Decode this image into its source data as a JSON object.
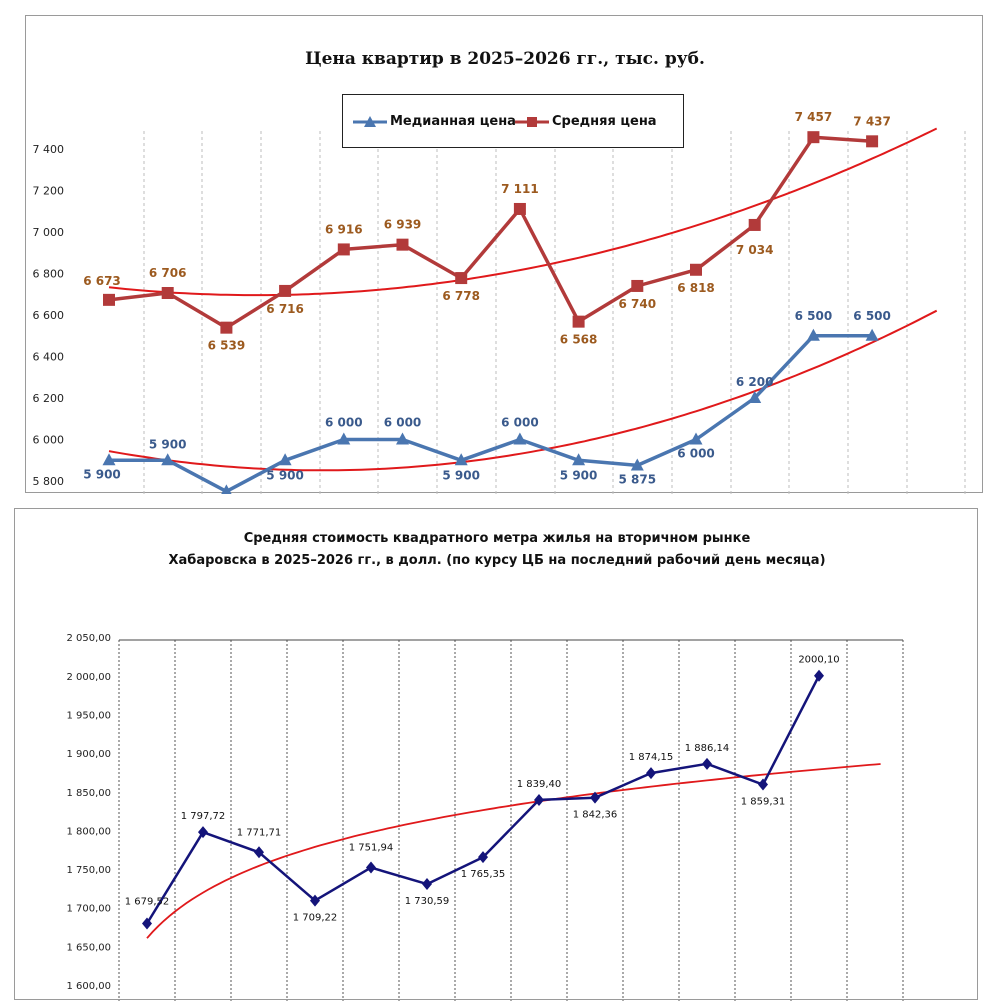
{
  "chart_data": [
    {
      "type": "line",
      "title": "Цена квартир в 2025–2026 гг., тыс. руб.",
      "ylim": [
        5800,
        7400
      ],
      "yticks": [
        "5 800",
        "6 000",
        "6 200",
        "6 400",
        "6 600",
        "6 800",
        "7 000",
        "7 200",
        "7 400"
      ],
      "ytick_values": [
        5800,
        6000,
        6200,
        6400,
        6600,
        6800,
        7000,
        7200,
        7400
      ],
      "grid": "vertical dashed",
      "legend": "top-center",
      "series": [
        {
          "name": "Медианная цена",
          "marker": "triangle",
          "color": "#4a76b0",
          "values": [
            5900,
            5900,
            5750,
            5900,
            6000,
            6000,
            5900,
            6000,
            5900,
            5875,
            6000,
            6200,
            6500,
            6500
          ],
          "labels": [
            "5 900",
            "5 900",
            "",
            "5 900",
            "6 000",
            "6 000",
            "5 900",
            "6 000",
            "5 900",
            "5 875",
            "6 000",
            "6 200",
            "6 500",
            "6 500"
          ]
        },
        {
          "name": "Средняя цена",
          "marker": "square",
          "color": "#b23a3a",
          "values": [
            6673,
            6706,
            6539,
            6716,
            6916,
            6939,
            6778,
            7111,
            6568,
            6740,
            6818,
            7034,
            7457,
            7437
          ],
          "labels": [
            "6 673",
            "6 706",
            "6 539",
            "6 716",
            "6 916",
            "6 939",
            "6 778",
            "7 111",
            "6 568",
            "6 740",
            "6 818",
            "7 034",
            "7 457",
            "7 437"
          ]
        }
      ],
      "trendlines": [
        {
          "series": "Средняя цена",
          "kind": "polynomial",
          "color": "#e0191b"
        },
        {
          "series": "Медианная цена",
          "kind": "polynomial",
          "color": "#e0191b"
        }
      ]
    },
    {
      "type": "line",
      "title_line1": "Средняя стоимость квадратного метра жилья на вторичном рынке",
      "title_line2": "Хабаровска в 2025–2026 гг., в долл.  (по курсу ЦБ на последний рабочий день месяца)",
      "ylim": [
        1600,
        2050
      ],
      "yticks": [
        "1 600,00",
        "1 650,00",
        "1 700,00",
        "1 750,00",
        "1 800,00",
        "1 850,00",
        "1 900,00",
        "1 950,00",
        "2 000,00",
        "2 050,00"
      ],
      "ytick_values": [
        1600,
        1650,
        1700,
        1750,
        1800,
        1850,
        1900,
        1950,
        2000,
        2050
      ],
      "grid": "vertical dotted",
      "series": [
        {
          "marker": "diamond",
          "color": "#14147a",
          "values": [
            1679.52,
            1797.72,
            1771.71,
            1709.22,
            1751.94,
            1730.59,
            1765.35,
            1839.4,
            1842.36,
            1874.15,
            1886.14,
            1859.31,
            2000.1
          ],
          "labels": [
            "1 679,52",
            "1 797,72",
            "1 771,71",
            "1 709,22",
            "1 751,94",
            "1 730,59",
            "1 765,35",
            "1 839,40",
            "1 842,36",
            "1 874,15",
            "1 886,14",
            "1 859,31",
            "2000,10"
          ]
        }
      ],
      "trendlines": [
        {
          "kind": "logarithmic",
          "color": "#e0191b"
        }
      ]
    }
  ]
}
